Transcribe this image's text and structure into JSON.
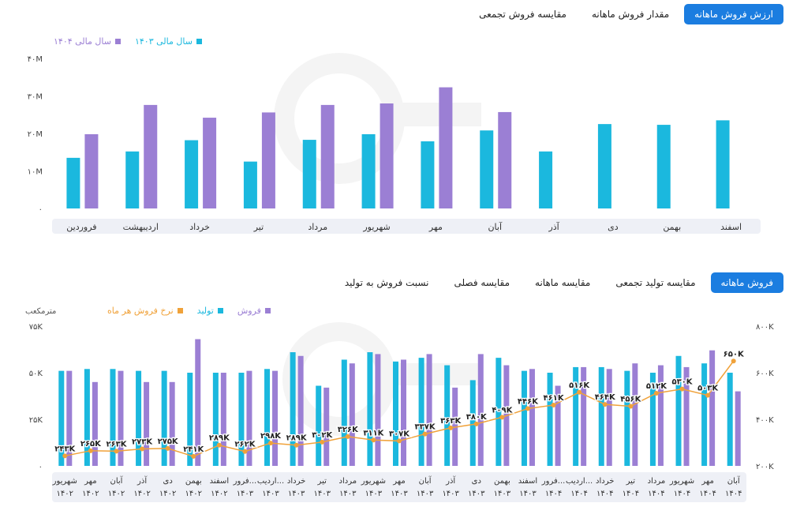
{
  "top_tabs": [
    {
      "label": "ارزش فروش ماهانه",
      "active": true
    },
    {
      "label": "مقدار فروش ماهانه",
      "active": false
    },
    {
      "label": "مقایسه فروش تجمعی",
      "active": false
    }
  ],
  "bottom_tabs": [
    {
      "label": "فروش ماهانه",
      "active": true
    },
    {
      "label": "مقایسه تولید تجمعی",
      "active": false
    },
    {
      "label": "مقایسه ماهانه",
      "active": false
    },
    {
      "label": "مقایسه فصلی",
      "active": false
    },
    {
      "label": "نسبت فروش به تولید",
      "active": false
    }
  ],
  "legend1": [
    {
      "label": "سال مالی ۱۴۰۳",
      "color": "#1bb8de"
    },
    {
      "label": "سال مالی ۱۴۰۴",
      "color": "#9b7fd4"
    }
  ],
  "legend2": [
    {
      "label": "فروش",
      "color": "#9b7fd4"
    },
    {
      "label": "تولید",
      "color": "#1bb8de"
    },
    {
      "label": "نرخ فروش هر ماه",
      "color": "#f0a23a"
    }
  ],
  "right_axis_unit": "مترمکعب",
  "chart_data": [
    {
      "type": "bar",
      "categories": [
        "فروردین",
        "اردیبهشت",
        "خرداد",
        "تیر",
        "مرداد",
        "شهریور",
        "مهر",
        "آبان",
        "آذر",
        "دی",
        "بهمن",
        "اسفند"
      ],
      "yticks": [
        "۰",
        "۱۰M",
        "۲۰M",
        "۳۰M",
        "۴۰M"
      ],
      "ylim": [
        0,
        40
      ],
      "series": [
        {
          "name": "سال مالی ۱۴۰۳",
          "color": "#1bb8de",
          "values": [
            13.5,
            15.2,
            18.2,
            12.5,
            18.3,
            19.8,
            17.9,
            20.8,
            15.2,
            22.5,
            22.3,
            23.5
          ]
        },
        {
          "name": "سال مالی ۱۴۰۴",
          "color": "#9b7fd4",
          "values": [
            19.8,
            27.6,
            24.2,
            25.6,
            27.6,
            28.0,
            32.3,
            25.7,
            null,
            null,
            null,
            null
          ]
        }
      ]
    },
    {
      "type": "bar",
      "categories": [
        [
          "شهریور",
          "۱۴۰۲"
        ],
        [
          "مهر",
          "۱۴۰۲"
        ],
        [
          "آبان",
          "۱۴۰۲"
        ],
        [
          "آذر",
          "۱۴۰۲"
        ],
        [
          "دی",
          "۱۴۰۲"
        ],
        [
          "بهمن",
          "۱۴۰۲"
        ],
        [
          "اسفند",
          "۱۴۰۲"
        ],
        [
          "فرور...",
          "۱۴۰۳"
        ],
        [
          "اردیب...",
          "۱۴۰۳"
        ],
        [
          "خرداد",
          "۱۴۰۳"
        ],
        [
          "تیر",
          "۱۴۰۳"
        ],
        [
          "مرداد",
          "۱۴۰۳"
        ],
        [
          "شهریور",
          "۱۴۰۳"
        ],
        [
          "مهر",
          "۱۴۰۳"
        ],
        [
          "آبان",
          "۱۴۰۳"
        ],
        [
          "آذر",
          "۱۴۰۳"
        ],
        [
          "دی",
          "۱۴۰۳"
        ],
        [
          "بهمن",
          "۱۴۰۳"
        ],
        [
          "اسفند",
          "۱۴۰۳"
        ],
        [
          "فرور...",
          "۱۴۰۴"
        ],
        [
          "اردیب...",
          "۱۴۰۴"
        ],
        [
          "خرداد",
          "۱۴۰۴"
        ],
        [
          "تیر",
          "۱۴۰۴"
        ],
        [
          "مرداد",
          "۱۴۰۴"
        ],
        [
          "شهریور",
          "۱۴۰۴"
        ],
        [
          "مهر",
          "۱۴۰۴"
        ],
        [
          "آبان",
          "۱۴۰۴"
        ]
      ],
      "yticks_left": [
        "۰",
        "۲۵K",
        "۵۰K",
        "۷۵K"
      ],
      "ylim_left": [
        0,
        75
      ],
      "yticks_right": [
        "۲۰۰K",
        "۴۰۰K",
        "۶۰۰K",
        "۸۰۰K"
      ],
      "ylim_right": [
        200,
        800
      ],
      "series": [
        {
          "name": "تولید",
          "color": "#1bb8de",
          "values": [
            51,
            52,
            52,
            51,
            51,
            50,
            50,
            50,
            52,
            61,
            43,
            57,
            61,
            56,
            58,
            54,
            46,
            58,
            51,
            50,
            53,
            53,
            51,
            50,
            59,
            55,
            50
          ]
        },
        {
          "name": "فروش",
          "color": "#9b7fd4",
          "values": [
            51,
            45,
            51,
            45,
            45,
            68,
            50,
            51,
            51,
            59,
            42,
            55,
            60,
            57,
            60,
            42,
            60,
            54,
            52,
            43,
            53,
            52,
            55,
            54,
            53,
            62,
            40
          ]
        },
        {
          "name": "نرخ فروش هر ماه",
          "color": "#f0a23a",
          "type": "line",
          "values": [
            243,
            265,
            263,
            273,
            275,
            241,
            289,
            262,
            298,
            289,
            302,
            326,
            311,
            307,
            337,
            363,
            380,
            409,
            446,
            461,
            516,
            464,
            456,
            512,
            530,
            503,
            650
          ],
          "labels": [
            "۲۴۳K",
            "۲۶۵K",
            "۲۶۳K",
            "۲۷۳K",
            "۲۷۵K",
            "۲۴۱K",
            "۲۸۹K",
            "۲۶۲K",
            "۲۹۸K",
            "۲۸۹K",
            "۳۰۲K",
            "۳۲۶K",
            "۳۱۱K",
            "۳۰۷K",
            "۳۳۷K",
            "۳۶۳K",
            "۳۸۰K",
            "۴۰۹K",
            "۴۴۶K",
            "۴۶۱K",
            "۵۱۶K",
            "۴۶۴K",
            "۴۵۶K",
            "۵۱۲K",
            "۵۳۰K",
            "۵۰۳K",
            "۶۵۰K"
          ]
        }
      ]
    }
  ]
}
